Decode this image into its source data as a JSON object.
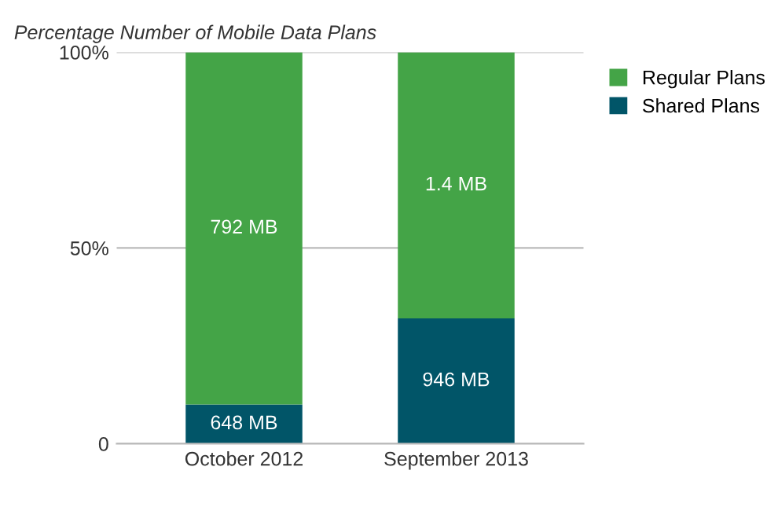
{
  "chart_data": {
    "type": "bar",
    "title": "Percentage Number of Mobile Data Plans",
    "categories": [
      "October 2012",
      "September 2013"
    ],
    "stacked": true,
    "series": [
      {
        "name": "Shared Plans",
        "color": "#015568",
        "values": [
          10,
          32
        ]
      },
      {
        "name": "Regular Plans",
        "color": "#44a447",
        "values": [
          90,
          68
        ]
      }
    ],
    "annotations": [
      "648 MB",
      "946 MB",
      "792 MB",
      "1.4 MB"
    ],
    "ylim": [
      0,
      100
    ],
    "yticks": [
      0,
      {
        "value": 50,
        "label": "50%"
      },
      {
        "value": 100,
        "label": "100%"
      }
    ],
    "grid": "y",
    "legend": "top right"
  }
}
